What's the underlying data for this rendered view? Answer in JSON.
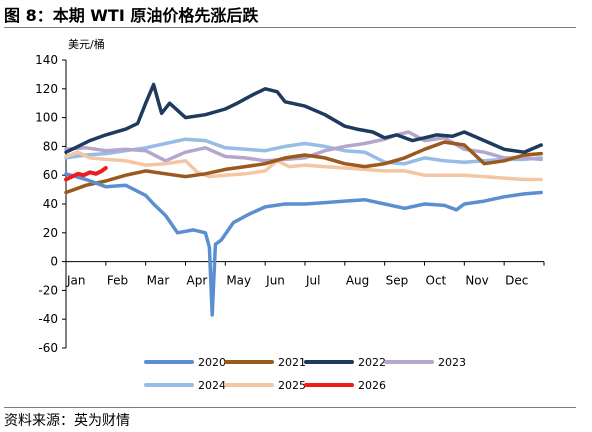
{
  "figure_title": "图 8：本期 WTI 原油价格先涨后跌",
  "source": "资料来源：英为财情",
  "colors": {
    "2020": "#5b8fd0",
    "2021": "#9a5a1e",
    "2022": "#1f3a5f",
    "2023": "#b4a6cc",
    "2024": "#97bde6",
    "2025": "#f4c6a4",
    "2026": "#ee1c1c"
  },
  "chart_data": {
    "type": "line",
    "title": "",
    "xlabel": "",
    "ylabel": "美元/桶",
    "ylim": [
      -60,
      140
    ],
    "yticks": [
      140,
      120,
      100,
      80,
      60,
      40,
      20,
      0,
      -20,
      -40,
      -60
    ],
    "x_unit": "month",
    "xlim": [
      1,
      13
    ],
    "categories": [
      "Jan",
      "Feb",
      "Mar",
      "Apr",
      "May",
      "Jun",
      "Jul",
      "Aug",
      "Sep",
      "Oct",
      "Nov",
      "Dec"
    ],
    "grid": false,
    "legend_position": "bottom",
    "series": [
      {
        "name": "2020",
        "x": [
          1,
          1.5,
          2,
          2.5,
          3,
          3.2,
          3.5,
          3.8,
          4.2,
          4.5,
          4.6,
          4.67,
          4.75,
          4.9,
          5.2,
          5.6,
          6,
          6.5,
          7,
          7.5,
          8,
          8.5,
          9,
          9.5,
          10,
          10.5,
          10.8,
          11,
          11.5,
          12,
          12.5,
          12.93
        ],
        "values": [
          61,
          57,
          52,
          53,
          46,
          40,
          32,
          20,
          22,
          20,
          10,
          -37,
          12,
          15,
          27,
          33,
          38,
          40,
          40,
          41,
          42,
          43,
          40,
          37,
          40,
          39,
          36,
          40,
          42,
          45,
          47,
          48
        ]
      },
      {
        "name": "2021",
        "x": [
          1,
          1.5,
          2,
          2.5,
          3,
          3.5,
          4,
          4.5,
          5,
          5.5,
          6,
          6.5,
          7,
          7.5,
          8,
          8.5,
          9,
          9.5,
          10,
          10.5,
          11,
          11.5,
          12,
          12.5,
          12.93
        ],
        "values": [
          48,
          53,
          56,
          60,
          63,
          61,
          59,
          61,
          64,
          66,
          68,
          72,
          74,
          72,
          68,
          66,
          68,
          72,
          78,
          83,
          81,
          68,
          70,
          74,
          75
        ]
      },
      {
        "name": "2022",
        "x": [
          1,
          1.3,
          1.6,
          2,
          2.5,
          2.8,
          3,
          3.2,
          3.4,
          3.6,
          4,
          4.5,
          5,
          5.3,
          5.7,
          6,
          6.3,
          6.5,
          7,
          7.5,
          8,
          8.3,
          8.7,
          9,
          9.3,
          9.7,
          10,
          10.3,
          10.7,
          11,
          11.5,
          12,
          12.5,
          12.93
        ],
        "values": [
          76,
          80,
          84,
          88,
          92,
          96,
          110,
          123,
          103,
          110,
          100,
          102,
          106,
          110,
          116,
          120,
          118,
          111,
          108,
          102,
          94,
          92,
          90,
          86,
          88,
          84,
          86,
          88,
          87,
          90,
          84,
          78,
          76,
          81
        ]
      },
      {
        "name": "2023",
        "x": [
          1,
          1.5,
          2,
          2.5,
          3,
          3.5,
          4,
          4.5,
          5,
          5.5,
          6,
          6.5,
          7,
          7.5,
          8,
          8.5,
          9,
          9.3,
          9.6,
          10,
          10.5,
          11,
          11.5,
          12,
          12.5,
          12.93
        ],
        "values": [
          78,
          79,
          77,
          78,
          77,
          70,
          76,
          79,
          73,
          72,
          70,
          71,
          72,
          77,
          80,
          82,
          85,
          88,
          90,
          84,
          86,
          78,
          76,
          72,
          72,
          71
        ]
      },
      {
        "name": "2024",
        "x": [
          1,
          1.5,
          2,
          2.5,
          3,
          3.5,
          4,
          4.5,
          5,
          5.5,
          6,
          6.5,
          7,
          7.5,
          8,
          8.5,
          9,
          9.5,
          10,
          10.5,
          11,
          11.5,
          12,
          12.5,
          12.93
        ],
        "values": [
          72,
          74,
          75,
          77,
          79,
          82,
          85,
          84,
          79,
          78,
          77,
          80,
          82,
          80,
          77,
          76,
          69,
          68,
          72,
          70,
          69,
          70,
          71,
          71,
          72
        ]
      },
      {
        "name": "2025",
        "x": [
          1,
          1.3,
          1.6,
          2,
          2.5,
          3,
          3.5,
          4,
          4.3,
          4.6,
          5,
          5.5,
          6,
          6.3,
          6.6,
          7,
          7.5,
          8,
          8.5,
          9,
          9.5,
          10,
          10.5,
          11,
          11.5,
          12,
          12.5,
          12.93
        ],
        "values": [
          73,
          76,
          72,
          71,
          70,
          67,
          68,
          70,
          62,
          59,
          60,
          61,
          63,
          70,
          66,
          67,
          66,
          65,
          64,
          63,
          63,
          60,
          60,
          60,
          59,
          58,
          57,
          57
        ]
      },
      {
        "name": "2026",
        "x": [
          1,
          1.15,
          1.3,
          1.45,
          1.6,
          1.75,
          1.9,
          2.0
        ],
        "values": [
          57,
          59,
          61,
          60,
          62,
          61,
          63,
          65
        ]
      }
    ]
  }
}
